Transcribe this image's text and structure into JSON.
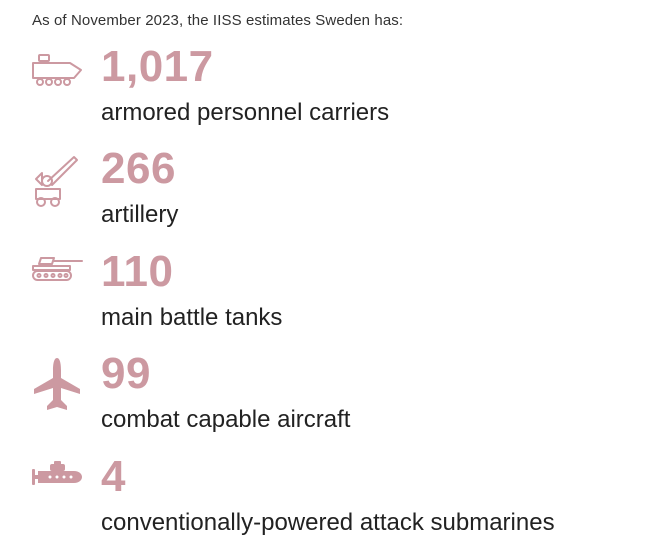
{
  "intro_text": "As of November 2023, the IISS estimates Sweden has:",
  "accent_color": "#cc99a1",
  "stats": [
    {
      "value": "1,017",
      "label": "armored personnel carriers",
      "icon": "armored-personnel-carrier-icon"
    },
    {
      "value": "266",
      "label": "artillery",
      "icon": "artillery-icon"
    },
    {
      "value": "110",
      "label": "main battle tanks",
      "icon": "tank-icon"
    },
    {
      "value": "99",
      "label": "combat capable aircraft",
      "icon": "aircraft-icon"
    },
    {
      "value": "4",
      "label": "conventionally-powered attack submarines",
      "icon": "submarine-icon"
    }
  ]
}
